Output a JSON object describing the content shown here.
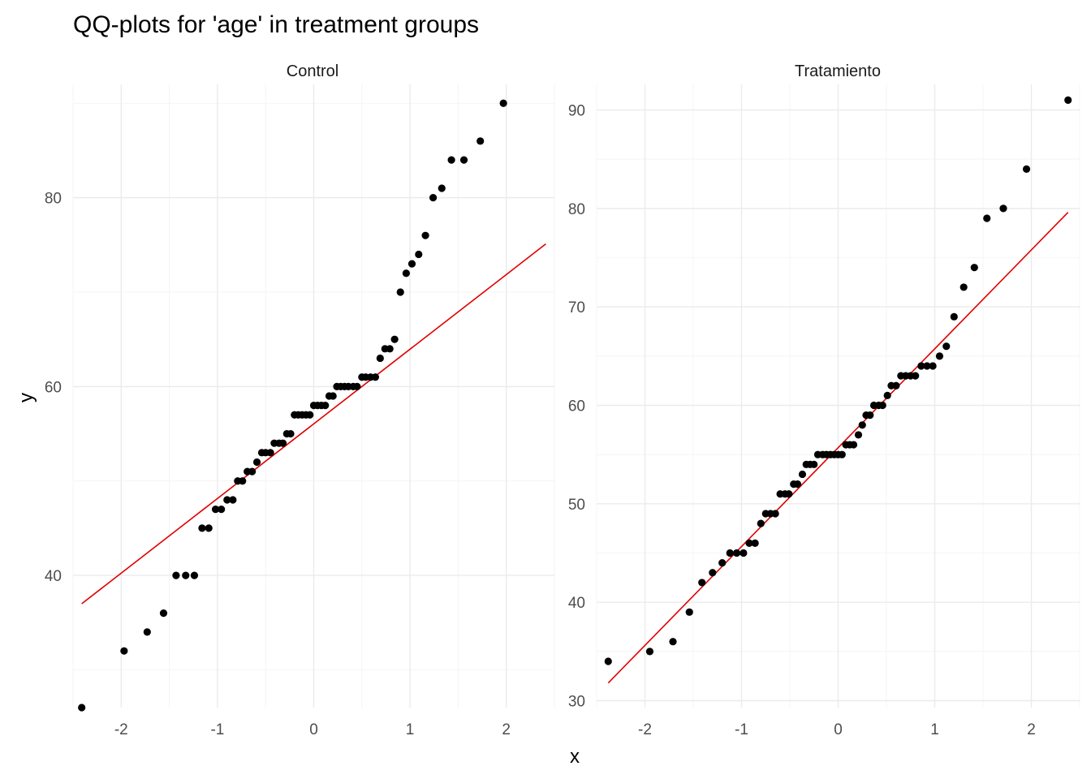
{
  "chart_data": {
    "type": "scatter",
    "title": "QQ-plots for 'age' in treatment groups",
    "xlabel": "x",
    "ylabel": "y",
    "grid": true,
    "line_color": "#e00000",
    "point_color": "#000000",
    "panels": [
      {
        "name": "Control",
        "xlim": [
          -2.5,
          2.5
        ],
        "ylim": [
          26,
          92
        ],
        "x_ticks": [
          -2,
          -1,
          0,
          1,
          2
        ],
        "x_tick_labels": [
          "-2",
          "-1",
          "0",
          "1",
          "2"
        ],
        "y_ticks": [
          40,
          60,
          80
        ],
        "y_tick_labels": [
          "40",
          "60",
          "80"
        ],
        "y_minor": [
          30,
          50,
          70,
          90
        ],
        "line": {
          "x": [
            -2.41,
            2.41
          ],
          "y": [
            37,
            75.1
          ]
        },
        "points": [
          [
            -2.41,
            26
          ],
          [
            -1.97,
            32
          ],
          [
            -1.73,
            34
          ],
          [
            -1.56,
            36
          ],
          [
            -1.43,
            40
          ],
          [
            -1.33,
            40
          ],
          [
            -1.24,
            40
          ],
          [
            -1.16,
            45
          ],
          [
            -1.09,
            45
          ],
          [
            -1.02,
            47
          ],
          [
            -0.96,
            47
          ],
          [
            -0.9,
            48
          ],
          [
            -0.84,
            48
          ],
          [
            -0.79,
            50
          ],
          [
            -0.74,
            50
          ],
          [
            -0.69,
            51
          ],
          [
            -0.64,
            51
          ],
          [
            -0.59,
            52
          ],
          [
            -0.54,
            53
          ],
          [
            -0.5,
            53
          ],
          [
            -0.45,
            53
          ],
          [
            -0.41,
            54
          ],
          [
            -0.36,
            54
          ],
          [
            -0.32,
            54
          ],
          [
            -0.28,
            55
          ],
          [
            -0.24,
            55
          ],
          [
            -0.2,
            57
          ],
          [
            -0.16,
            57
          ],
          [
            -0.12,
            57
          ],
          [
            -0.08,
            57
          ],
          [
            -0.04,
            57
          ],
          [
            0.0,
            58
          ],
          [
            0.04,
            58
          ],
          [
            0.08,
            58
          ],
          [
            0.12,
            58
          ],
          [
            0.16,
            59
          ],
          [
            0.2,
            59
          ],
          [
            0.24,
            60
          ],
          [
            0.28,
            60
          ],
          [
            0.32,
            60
          ],
          [
            0.36,
            60
          ],
          [
            0.41,
            60
          ],
          [
            0.45,
            60
          ],
          [
            0.5,
            61
          ],
          [
            0.54,
            61
          ],
          [
            0.59,
            61
          ],
          [
            0.64,
            61
          ],
          [
            0.69,
            63
          ],
          [
            0.74,
            64
          ],
          [
            0.79,
            64
          ],
          [
            0.84,
            65
          ],
          [
            0.9,
            70
          ],
          [
            0.96,
            72
          ],
          [
            1.02,
            73
          ],
          [
            1.09,
            74
          ],
          [
            1.16,
            76
          ],
          [
            1.24,
            80
          ],
          [
            1.33,
            81
          ],
          [
            1.43,
            84
          ],
          [
            1.56,
            84
          ],
          [
            1.73,
            86
          ],
          [
            1.97,
            90
          ]
        ]
      },
      {
        "name": "Tratamiento",
        "xlim": [
          -2.5,
          2.5
        ],
        "ylim": [
          29.3,
          92.6
        ],
        "x_ticks": [
          -2,
          -1,
          0,
          1,
          2
        ],
        "x_tick_labels": [
          "-2",
          "-1",
          "0",
          "1",
          "2"
        ],
        "y_ticks": [
          30,
          40,
          50,
          60,
          70,
          80,
          90
        ],
        "y_tick_labels": [
          "30",
          "40",
          "50",
          "60",
          "70",
          "80",
          "90"
        ],
        "y_minor": [
          35,
          45,
          55,
          65,
          75,
          85
        ],
        "line": {
          "x": [
            -2.38,
            2.38
          ],
          "y": [
            31.8,
            79.6
          ]
        },
        "points": [
          [
            -2.38,
            34
          ],
          [
            -1.95,
            35
          ],
          [
            -1.71,
            36
          ],
          [
            -1.54,
            39
          ],
          [
            -1.41,
            42
          ],
          [
            -1.3,
            43
          ],
          [
            -1.2,
            44
          ],
          [
            -1.12,
            45
          ],
          [
            -1.05,
            45
          ],
          [
            -0.98,
            45
          ],
          [
            -0.92,
            46
          ],
          [
            -0.86,
            46
          ],
          [
            -0.8,
            48
          ],
          [
            -0.75,
            49
          ],
          [
            -0.7,
            49
          ],
          [
            -0.65,
            49
          ],
          [
            -0.6,
            51
          ],
          [
            -0.55,
            51
          ],
          [
            -0.51,
            51
          ],
          [
            -0.46,
            52
          ],
          [
            -0.42,
            52
          ],
          [
            -0.37,
            53
          ],
          [
            -0.33,
            54
          ],
          [
            -0.29,
            54
          ],
          [
            -0.25,
            54
          ],
          [
            -0.21,
            55
          ],
          [
            -0.16,
            55
          ],
          [
            -0.12,
            55
          ],
          [
            -0.08,
            55
          ],
          [
            -0.04,
            55
          ],
          [
            0.0,
            55
          ],
          [
            0.04,
            55
          ],
          [
            0.08,
            56
          ],
          [
            0.12,
            56
          ],
          [
            0.16,
            56
          ],
          [
            0.21,
            57
          ],
          [
            0.25,
            58
          ],
          [
            0.29,
            59
          ],
          [
            0.33,
            59
          ],
          [
            0.37,
            60
          ],
          [
            0.42,
            60
          ],
          [
            0.46,
            60
          ],
          [
            0.51,
            61
          ],
          [
            0.55,
            62
          ],
          [
            0.6,
            62
          ],
          [
            0.65,
            63
          ],
          [
            0.7,
            63
          ],
          [
            0.75,
            63
          ],
          [
            0.8,
            63
          ],
          [
            0.86,
            64
          ],
          [
            0.92,
            64
          ],
          [
            0.98,
            64
          ],
          [
            1.05,
            65
          ],
          [
            1.12,
            66
          ],
          [
            1.2,
            69
          ],
          [
            1.3,
            72
          ],
          [
            1.41,
            74
          ],
          [
            1.54,
            79
          ],
          [
            1.71,
            80
          ],
          [
            1.95,
            84
          ],
          [
            2.38,
            91
          ]
        ]
      }
    ]
  }
}
